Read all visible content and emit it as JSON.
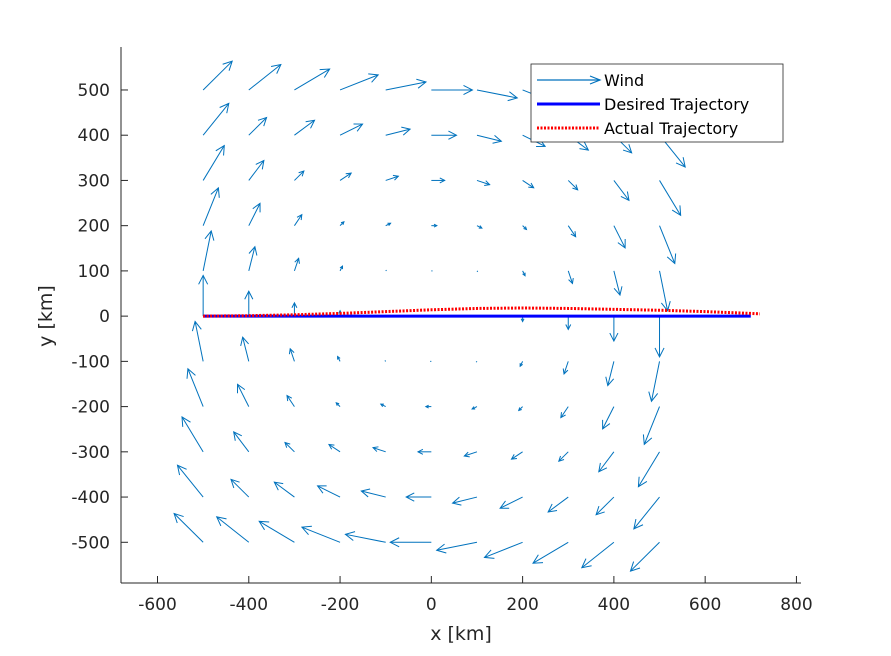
{
  "colors": {
    "wind": "#0072BD",
    "desired": "#0000FF",
    "actual": "#FF0000",
    "axis": "#262626"
  },
  "chart_data": {
    "type": "line",
    "title": "",
    "xlabel": "x [km]",
    "ylabel": "y [km]",
    "xlim": [
      -680,
      810
    ],
    "ylim": [
      -590,
      595
    ],
    "xticks": [
      -600,
      -400,
      -200,
      0,
      200,
      400,
      600,
      800
    ],
    "yticks": [
      -500,
      -400,
      -300,
      -200,
      -100,
      0,
      100,
      200,
      300,
      400,
      500
    ],
    "xtick_labels": [
      "-600",
      "-400",
      "-200",
      "0",
      "200",
      "400",
      "600",
      "800"
    ],
    "ytick_labels": [
      "-500",
      "-400",
      "-300",
      "-200",
      "-100",
      "0",
      "100",
      "200",
      "300",
      "400",
      "500"
    ],
    "grid": false,
    "legend": {
      "placement": "top-right",
      "entries": [
        "Wind",
        "Desired Trajectory",
        "Actual Trajectory"
      ]
    },
    "wind_field": {
      "type": "quiver",
      "name": "Wind",
      "x": [
        -500,
        -400,
        -300,
        -200,
        -100,
        0,
        100,
        200,
        300,
        400,
        500
      ],
      "y": [
        -500,
        -400,
        -300,
        -200,
        -100,
        0,
        100,
        200,
        300,
        400,
        500
      ],
      "center": [
        0,
        0
      ],
      "half_width": 500,
      "description": "vortex rotating clockwise; speed grows toward the edges of the square"
    },
    "series": [
      {
        "name": "Desired Trajectory",
        "style": "solid",
        "x": [
          -500,
          700
        ],
        "y": [
          0,
          0
        ]
      },
      {
        "name": "Actual Trajectory",
        "style": "dotted",
        "x": [
          -500,
          -400,
          -300,
          -200,
          -100,
          0,
          100,
          200,
          300,
          400,
          500,
          600,
          700,
          720
        ],
        "y": [
          0,
          1,
          3,
          6,
          10,
          14,
          17,
          18,
          17,
          15,
          13,
          10,
          6,
          5
        ]
      }
    ]
  }
}
